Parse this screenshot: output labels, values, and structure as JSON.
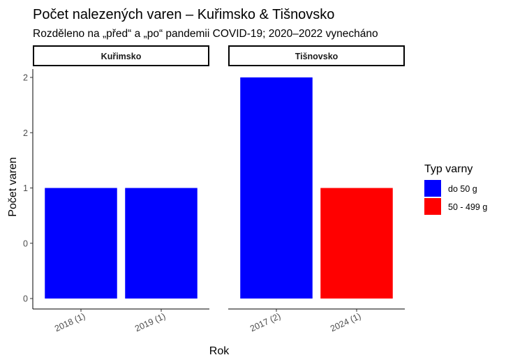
{
  "chart_data": {
    "type": "bar",
    "title": "Počet nalezených varen – Kuřimsko & Tišnovsko",
    "subtitle": "Rozděleno na „před“ a „po“ pandemii COVID-19; 2020–2022 vynecháno",
    "xlabel": "Rok",
    "ylabel": "Počet varen",
    "ylim": [
      0,
      2
    ],
    "y_ticks": [
      0,
      0.5,
      1,
      1.5,
      2
    ],
    "y_tick_labels": [
      "0",
      "0",
      "1",
      "2",
      "2"
    ],
    "legend": {
      "title": "Typ varny",
      "placement": "right",
      "items": [
        {
          "label": "do 50 g",
          "color": "#0000ff"
        },
        {
          "label": "50 - 499 g",
          "color": "#ff0000"
        }
      ]
    },
    "facets": [
      {
        "label": "Kuřimsko",
        "categories": [
          "2018 (1)",
          "2019 (1)"
        ],
        "bars": [
          {
            "category": "2018 (1)",
            "type": "do 50 g",
            "value": 1
          },
          {
            "category": "2019 (1)",
            "type": "do 50 g",
            "value": 1
          }
        ]
      },
      {
        "label": "Tišnovsko",
        "categories": [
          "2017 (2)",
          "2024 (1)"
        ],
        "bars": [
          {
            "category": "2017 (2)",
            "type": "do 50 g",
            "value": 2
          },
          {
            "category": "2024 (1)",
            "type": "50 - 499 g",
            "value": 1
          }
        ]
      }
    ],
    "grid": false
  }
}
